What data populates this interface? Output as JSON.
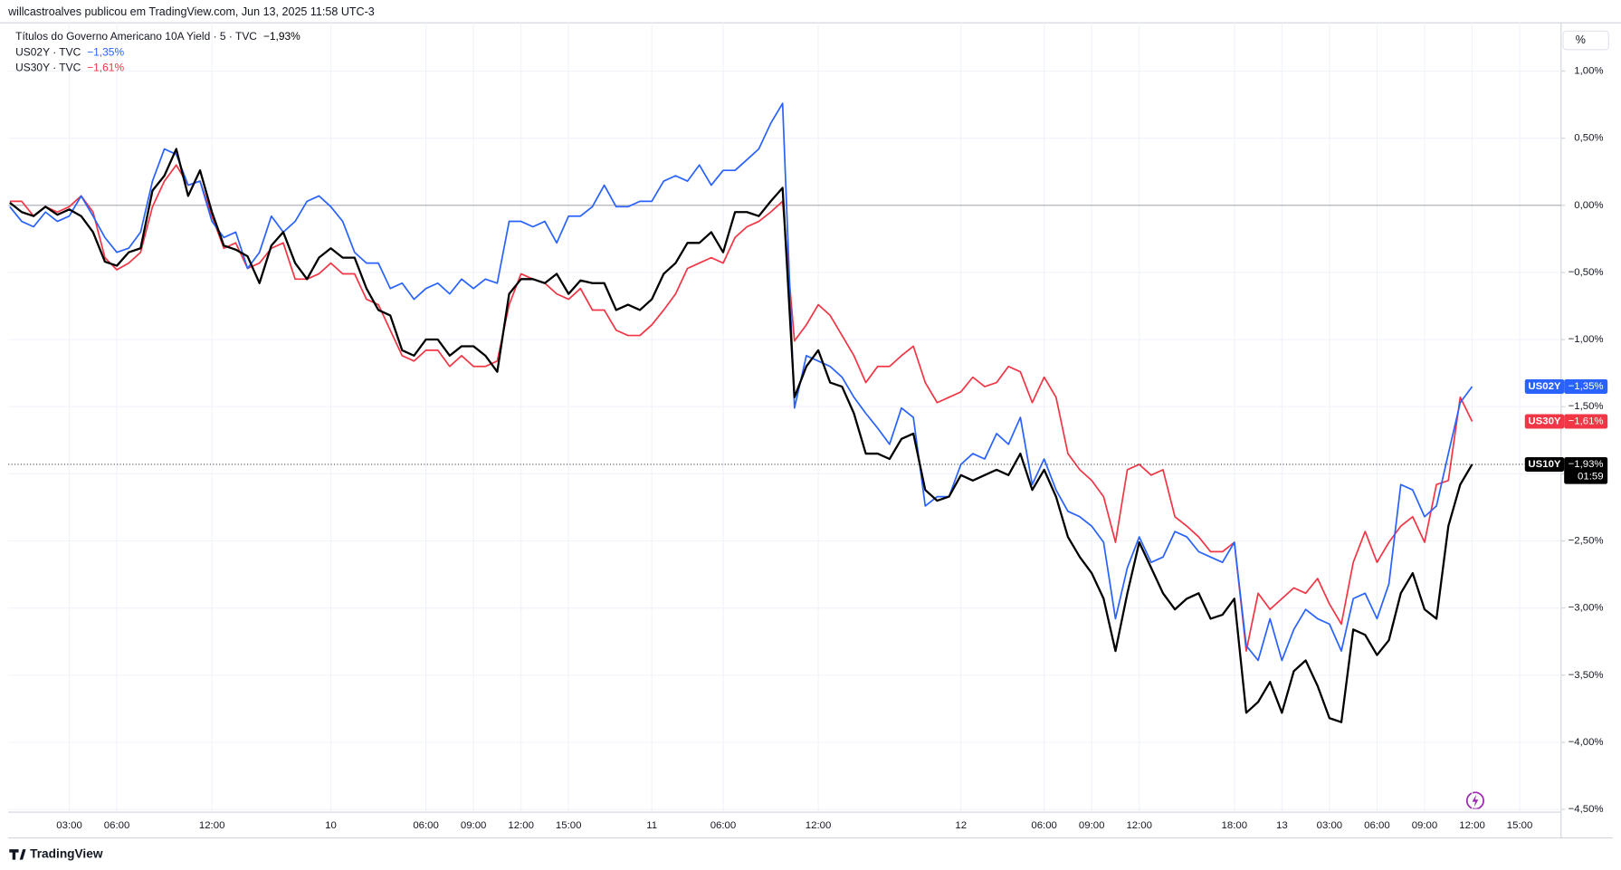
{
  "header": {
    "publisher": "willcastroalves publicou em TradingView.com, Jun 13, 2025 11:58 UTC-3",
    "unit": "%",
    "countdown": "01:59",
    "brand": "TradingView"
  },
  "chart_data": {
    "type": "line",
    "categories": [
      null,
      null,
      null,
      null,
      null,
      "03:00",
      null,
      null,
      null,
      "06:00",
      null,
      null,
      null,
      null,
      null,
      null,
      null,
      "12:00",
      null,
      null,
      null,
      null,
      null,
      null,
      null,
      null,
      null,
      "10",
      null,
      null,
      null,
      null,
      null,
      null,
      null,
      "06:00",
      null,
      null,
      null,
      "09:00",
      null,
      null,
      null,
      "12:00",
      null,
      null,
      null,
      "15:00",
      null,
      null,
      null,
      null,
      null,
      null,
      "11",
      null,
      null,
      null,
      null,
      null,
      "06:00",
      null,
      null,
      null,
      null,
      null,
      null,
      null,
      "12:00",
      null,
      null,
      null,
      null,
      null,
      null,
      null,
      null,
      null,
      null,
      null,
      "12",
      null,
      null,
      null,
      null,
      null,
      null,
      "06:00",
      null,
      null,
      null,
      "09:00",
      null,
      null,
      null,
      "12:00",
      null,
      null,
      null,
      null,
      null,
      null,
      null,
      "18:00",
      null,
      null,
      null,
      "13",
      null,
      null,
      null,
      "03:00",
      null,
      null,
      null,
      "06:00",
      null,
      null,
      null,
      "09:00",
      null,
      null,
      null,
      "12:00",
      null,
      null,
      null,
      "15:00"
    ],
    "series": [
      {
        "name": "US10Y",
        "label": "Títulos do Governo Americano 10A Yield · 5 · TVC",
        "change": -1.93,
        "change_label": "−1,93%",
        "color": "#000000",
        "values": [
          0.02,
          -0.05,
          -0.08,
          -0.01,
          -0.07,
          -0.03,
          -0.08,
          -0.2,
          -0.42,
          -0.45,
          -0.35,
          -0.32,
          0.11,
          0.22,
          0.42,
          0.07,
          0.26,
          -0.05,
          -0.3,
          -0.33,
          -0.38,
          -0.58,
          -0.3,
          -0.2,
          -0.43,
          -0.55,
          -0.39,
          -0.32,
          -0.39,
          -0.39,
          -0.62,
          -0.78,
          -0.82,
          -1.08,
          -1.12,
          -1.0,
          -1.0,
          -1.12,
          -1.05,
          -1.05,
          -1.12,
          -1.24,
          -0.66,
          -0.55,
          -0.55,
          -0.58,
          -0.51,
          -0.66,
          -0.56,
          -0.58,
          -0.58,
          -0.78,
          -0.74,
          -0.78,
          -0.7,
          -0.51,
          -0.43,
          -0.28,
          -0.28,
          -0.2,
          -0.35,
          -0.05,
          -0.05,
          -0.08,
          0.03,
          0.13,
          -1.43,
          -1.2,
          -1.08,
          -1.32,
          -1.35,
          -1.55,
          -1.85,
          -1.85,
          -1.89,
          -1.74,
          -1.7,
          -2.12,
          -2.2,
          -2.17,
          -2.01,
          -2.05,
          -2.01,
          -1.97,
          -2.01,
          -1.85,
          -2.12,
          -1.97,
          -2.17,
          -2.47,
          -2.62,
          -2.74,
          -2.93,
          -3.32,
          -2.89,
          -2.51,
          -2.7,
          -2.89,
          -3.01,
          -2.93,
          -2.89,
          -3.08,
          -3.05,
          -2.93,
          -3.78,
          -3.7,
          -3.55,
          -3.78,
          -3.47,
          -3.39,
          -3.58,
          -3.82,
          -3.85,
          -3.16,
          -3.2,
          -3.35,
          -3.24,
          -2.89,
          -2.74,
          -3.01,
          -3.08,
          -2.39,
          -2.08,
          -1.93,
          null,
          null,
          null,
          null
        ]
      },
      {
        "name": "US02Y",
        "label": "US02Y · TVC",
        "change": -1.35,
        "change_label": "−1,35%",
        "color": "#2962ff",
        "values": [
          -0.01,
          -0.12,
          -0.16,
          -0.05,
          -0.12,
          -0.08,
          0.07,
          -0.08,
          -0.24,
          -0.35,
          -0.32,
          -0.2,
          0.18,
          0.42,
          0.38,
          0.15,
          0.18,
          -0.12,
          -0.24,
          -0.2,
          -0.47,
          -0.35,
          -0.08,
          -0.2,
          -0.12,
          0.03,
          0.07,
          -0.01,
          -0.12,
          -0.35,
          -0.43,
          -0.43,
          -0.62,
          -0.58,
          -0.7,
          -0.62,
          -0.58,
          -0.66,
          -0.55,
          -0.62,
          -0.55,
          -0.58,
          -0.12,
          -0.12,
          -0.16,
          -0.12,
          -0.28,
          -0.08,
          -0.08,
          -0.01,
          0.15,
          -0.01,
          -0.01,
          0.03,
          0.03,
          0.18,
          0.22,
          0.18,
          0.3,
          0.15,
          0.26,
          0.26,
          0.34,
          0.42,
          0.61,
          0.76,
          -1.51,
          -1.12,
          -1.16,
          -1.2,
          -1.28,
          -1.43,
          -1.55,
          -1.66,
          -1.78,
          -1.51,
          -1.58,
          -2.24,
          -2.17,
          -2.17,
          -1.93,
          -1.85,
          -1.89,
          -1.7,
          -1.78,
          -1.58,
          -2.08,
          -1.89,
          -2.12,
          -2.28,
          -2.32,
          -2.39,
          -2.51,
          -3.08,
          -2.7,
          -2.47,
          -2.66,
          -2.62,
          -2.43,
          -2.47,
          -2.58,
          -2.62,
          -2.66,
          -2.51,
          -3.28,
          -3.39,
          -3.08,
          -3.39,
          -3.16,
          -3.01,
          -3.08,
          -3.12,
          -3.32,
          -2.93,
          -2.89,
          -3.08,
          -2.82,
          -2.08,
          -2.12,
          -2.32,
          -2.24,
          -1.85,
          -1.47,
          -1.35,
          null,
          null,
          null,
          null
        ]
      },
      {
        "name": "US30Y",
        "label": "US30Y · TVC",
        "change": -1.61,
        "change_label": "−1,61%",
        "color": "#f23645",
        "values": [
          0.03,
          0.03,
          -0.08,
          -0.01,
          -0.05,
          -0.01,
          0.07,
          -0.05,
          -0.39,
          -0.48,
          -0.43,
          -0.35,
          -0.01,
          0.18,
          0.3,
          0.15,
          0.18,
          -0.08,
          -0.32,
          -0.28,
          -0.47,
          -0.43,
          -0.32,
          -0.28,
          -0.55,
          -0.55,
          -0.51,
          -0.43,
          -0.51,
          -0.51,
          -0.7,
          -0.74,
          -0.93,
          -1.12,
          -1.16,
          -1.08,
          -1.08,
          -1.2,
          -1.12,
          -1.2,
          -1.2,
          -1.16,
          -0.74,
          -0.51,
          -0.55,
          -0.58,
          -0.66,
          -0.7,
          -0.62,
          -0.78,
          -0.78,
          -0.93,
          -0.97,
          -0.97,
          -0.89,
          -0.78,
          -0.66,
          -0.47,
          -0.43,
          -0.39,
          -0.43,
          -0.24,
          -0.16,
          -0.12,
          -0.05,
          0.03,
          -1.01,
          -0.89,
          -0.74,
          -0.82,
          -0.97,
          -1.12,
          -1.32,
          -1.2,
          -1.2,
          -1.12,
          -1.05,
          -1.32,
          -1.47,
          -1.43,
          -1.39,
          -1.28,
          -1.35,
          -1.32,
          -1.2,
          -1.24,
          -1.47,
          -1.28,
          -1.43,
          -1.85,
          -1.97,
          -2.05,
          -2.17,
          -2.51,
          -1.97,
          -1.93,
          -2.01,
          -1.97,
          -2.32,
          -2.39,
          -2.47,
          -2.58,
          -2.58,
          -2.51,
          -3.32,
          -2.89,
          -3.01,
          -2.93,
          -2.85,
          -2.89,
          -2.78,
          -2.97,
          -3.12,
          -2.66,
          -2.43,
          -2.66,
          -2.51,
          -2.39,
          -2.32,
          -2.51,
          -2.08,
          -2.05,
          -1.43,
          -1.61,
          null,
          null,
          null,
          null
        ]
      }
    ],
    "ylim": [
      -4.52,
      1.36
    ],
    "yticks": [
      {
        "value": 1.0,
        "label": "1,00%"
      },
      {
        "value": 0.5,
        "label": "0,50%"
      },
      {
        "value": 0,
        "label": "0,00%"
      },
      {
        "value": -0.5,
        "label": "−0,50%"
      },
      {
        "value": -1.0,
        "label": "−1,00%"
      },
      {
        "value": -1.5,
        "label": "−1,50%"
      },
      {
        "value": -2.0,
        "label": "−2,00%"
      },
      {
        "value": -2.5,
        "label": "−2,50%"
      },
      {
        "value": -3.0,
        "label": "−3,00%"
      },
      {
        "value": -3.5,
        "label": "−3,50%"
      },
      {
        "value": -4.0,
        "label": "−4,00%"
      },
      {
        "value": -4.5,
        "label": "−4,50%"
      }
    ],
    "grid": true
  }
}
